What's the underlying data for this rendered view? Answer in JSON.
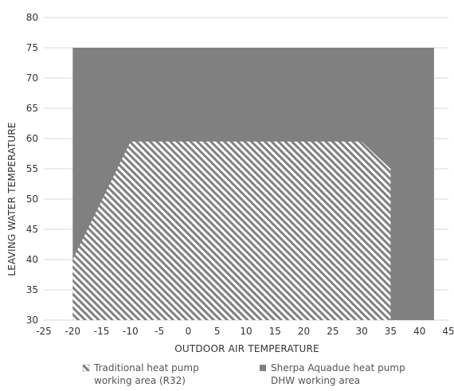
{
  "chart_data": {
    "type": "area",
    "xlabel": "OUTDOOR AIR TEMPERATURE",
    "ylabel": "LEAVING WATER TEMPERATURE",
    "xlim": [
      -25,
      45
    ],
    "ylim": [
      30,
      80
    ],
    "x_ticks": [
      "-25",
      "-20",
      "-15",
      "-10",
      "-5",
      "0",
      "5",
      "10",
      "15",
      "20",
      "25",
      "30",
      "35",
      "40",
      "45"
    ],
    "y_ticks": [
      "30",
      "35",
      "40",
      "45",
      "50",
      "55",
      "60",
      "65",
      "70",
      "75",
      "80"
    ],
    "grid": "horizontal",
    "series": [
      {
        "name_lines": [
          "Sherpa Aquadue heat pump",
          "DHW working area"
        ],
        "color": "#808080",
        "fill": "solid",
        "polygon": [
          [
            -20,
            30
          ],
          [
            -20,
            75
          ],
          [
            42.5,
            75
          ],
          [
            42.5,
            30
          ]
        ]
      },
      {
        "name_lines": [
          "Traditional heat pump",
          "working area (R32)"
        ],
        "color": "#ffffff",
        "fill": "diagonal-hatch",
        "polygon": [
          [
            -20,
            30
          ],
          [
            -20,
            40
          ],
          [
            -10,
            59.5
          ],
          [
            30,
            59.5
          ],
          [
            35,
            55
          ],
          [
            35,
            30
          ]
        ]
      }
    ],
    "legend": {
      "placement": "bottom",
      "order": [
        1,
        0
      ]
    }
  }
}
